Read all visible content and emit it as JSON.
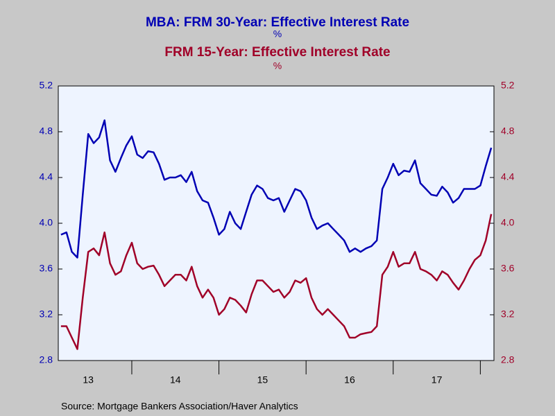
{
  "chart_data": {
    "type": "line",
    "series": [
      {
        "name": "MBA: FRM 30-Year: Effective Interest Rate",
        "unit": "%",
        "color": "#0000b4",
        "axis": "y",
        "values": [
          3.9,
          3.92,
          3.75,
          3.7,
          4.25,
          4.78,
          4.7,
          4.75,
          4.9,
          4.55,
          4.45,
          4.57,
          4.68,
          4.76,
          4.6,
          4.57,
          4.63,
          4.62,
          4.52,
          4.38,
          4.4,
          4.4,
          4.42,
          4.36,
          4.45,
          4.28,
          4.2,
          4.18,
          4.05,
          3.9,
          3.95,
          4.1,
          4.0,
          3.95,
          4.1,
          4.25,
          4.33,
          4.3,
          4.22,
          4.2,
          4.22,
          4.1,
          4.2,
          4.3,
          4.28,
          4.2,
          4.05,
          3.95,
          3.98,
          4.0,
          3.95,
          3.9,
          3.85,
          3.75,
          3.78,
          3.75,
          3.78,
          3.8,
          3.85,
          4.3,
          4.4,
          4.52,
          4.42,
          4.46,
          4.45,
          4.55,
          4.35,
          4.3,
          4.25,
          4.24,
          4.32,
          4.27,
          4.18,
          4.22,
          4.3,
          4.3,
          4.3,
          4.33,
          4.5,
          4.66
        ]
      },
      {
        "name": "FRM 15-Year: Effective Interest Rate",
        "unit": "%",
        "color": "#a00028",
        "axis": "y2",
        "values": [
          3.1,
          3.1,
          3.0,
          2.9,
          3.35,
          3.75,
          3.78,
          3.72,
          3.92,
          3.65,
          3.55,
          3.58,
          3.72,
          3.83,
          3.65,
          3.6,
          3.62,
          3.63,
          3.55,
          3.45,
          3.5,
          3.55,
          3.55,
          3.5,
          3.62,
          3.45,
          3.35,
          3.42,
          3.35,
          3.2,
          3.25,
          3.35,
          3.33,
          3.28,
          3.22,
          3.38,
          3.5,
          3.5,
          3.45,
          3.4,
          3.42,
          3.35,
          3.4,
          3.5,
          3.48,
          3.52,
          3.35,
          3.25,
          3.2,
          3.25,
          3.2,
          3.15,
          3.1,
          3.0,
          3.0,
          3.03,
          3.04,
          3.05,
          3.1,
          3.55,
          3.62,
          3.75,
          3.62,
          3.65,
          3.65,
          3.75,
          3.6,
          3.58,
          3.55,
          3.5,
          3.58,
          3.55,
          3.48,
          3.42,
          3.5,
          3.6,
          3.68,
          3.72,
          3.85,
          4.08
        ]
      }
    ],
    "categories": [
      null,
      null,
      null,
      null,
      null,
      "13",
      null,
      null,
      null,
      null,
      null,
      null,
      null,
      null,
      null,
      null,
      null,
      null,
      null,
      null,
      null,
      "14",
      null,
      null,
      null,
      null,
      null,
      null,
      null,
      null,
      null,
      null,
      null,
      null,
      null,
      null,
      null,
      "15",
      null,
      null,
      null,
      null,
      null,
      null,
      null,
      null,
      null,
      null,
      null,
      null,
      null,
      null,
      null,
      "16",
      null,
      null,
      null,
      null,
      null,
      null,
      null,
      null,
      null,
      null,
      null,
      null,
      null,
      null,
      null,
      "17",
      null,
      null,
      null,
      null,
      null,
      null,
      null,
      null,
      null,
      null
    ],
    "ylim": [
      2.8,
      5.2
    ],
    "yticks": [
      2.8,
      3.2,
      3.6,
      {
        "value": 4,
        "label": "4.0"
      },
      4.4,
      4.8,
      5.2
    ],
    "y2lim": [
      2.8,
      5.2
    ],
    "y2ticks": [
      2.8,
      3.2,
      3.6,
      {
        "value": 4,
        "label": "4.0"
      },
      4.4,
      4.8,
      5.2
    ],
    "source": "Source:  Mortgage Bankers Association/Haver Analytics"
  }
}
